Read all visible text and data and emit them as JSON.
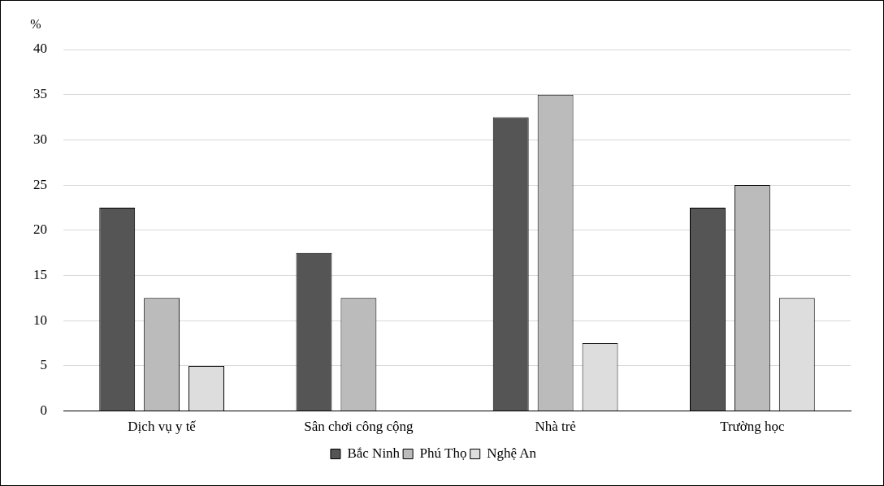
{
  "chart_data": {
    "type": "bar",
    "ylabel": "%",
    "categories": [
      "Dịch vụ y tế",
      "Sân chơi công cộng",
      "Nhà trẻ",
      "Trường học"
    ],
    "series": [
      {
        "name": "Bắc Ninh",
        "color": "#555555",
        "values": [
          22.5,
          17.5,
          32.5,
          22.5
        ]
      },
      {
        "name": "Phú Thọ",
        "color": "#bbbbbb",
        "values": [
          12.5,
          12.5,
          35,
          25
        ]
      },
      {
        "name": "Nghệ An",
        "color": "#dddddd",
        "values": [
          5,
          null,
          7.5,
          12.5
        ]
      }
    ],
    "ylim": [
      0,
      40
    ],
    "yticks": [
      0,
      5,
      10,
      15,
      20,
      25,
      30,
      35,
      40
    ],
    "grid": "y",
    "legend": "bottom"
  }
}
